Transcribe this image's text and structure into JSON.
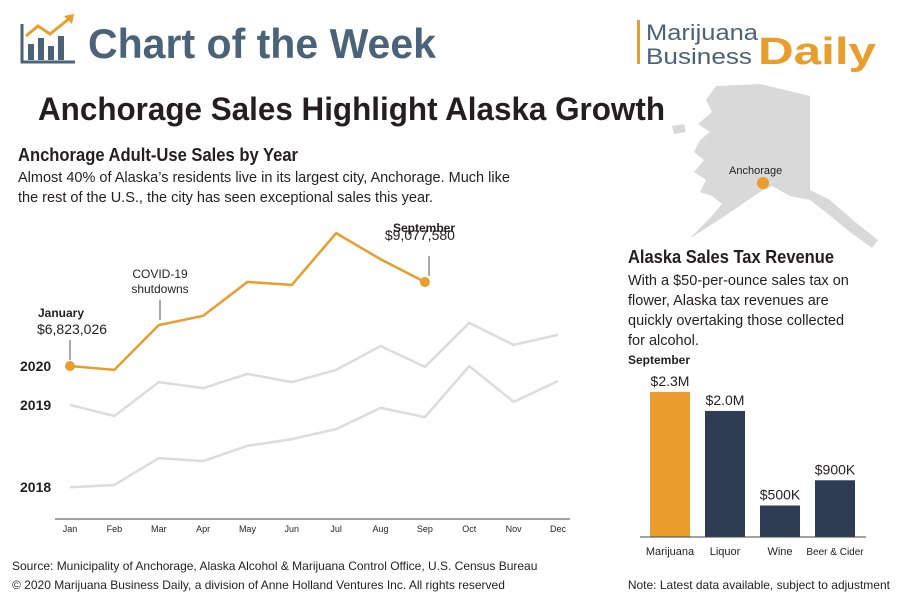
{
  "header": {
    "title": "Chart of the Week",
    "logo": [
      "Marijuana",
      "Business",
      "Daily"
    ]
  },
  "headline": "Anchorage Sales Highlight Alaska Growth",
  "map": {
    "label": "Anchorage"
  },
  "chart_data": [
    {
      "type": "line",
      "title": "Anchorage Adult-Use Sales by Year",
      "description": [
        "Almost 40% of Alaska’s residents live in its largest city, Anchorage. Much like",
        "the rest of the U.S., the city has seen exceptional sales this year."
      ],
      "categories": [
        "Jan",
        "Feb",
        "Mar",
        "Apr",
        "May",
        "Jun",
        "Jul",
        "Aug",
        "Sep",
        "Oct",
        "Nov",
        "Dec"
      ],
      "ylim": [
        2700000,
        10700000
      ],
      "annotations": [
        "January",
        "September",
        "COVID-19",
        "shutdowns"
      ],
      "series": [
        {
          "name": "2018",
          "color": "#dcdcdc",
          "values": [
            3570000,
            3630000,
            4350000,
            4270000,
            4680000,
            4860000,
            5130000,
            5700000,
            5450000,
            6820000,
            5860000,
            6420000
          ]
        },
        {
          "name": "2019",
          "color": "#dcdcdc",
          "values": [
            5780000,
            5480000,
            6390000,
            6230000,
            6610000,
            6390000,
            6720000,
            7360000,
            6800000,
            7980000,
            7390000,
            7660000
          ]
        },
        {
          "name": "2020",
          "color": "#e89d2c",
          "values": [
            6823026,
            6720000,
            7920000,
            8170000,
            9080000,
            9000000,
            10390000,
            9690000,
            9077580,
            null,
            null,
            null
          ],
          "value_labels": [
            "$6,823,026",
            null,
            null,
            null,
            null,
            null,
            null,
            null,
            "$9,077,580",
            null,
            null,
            null
          ]
        }
      ]
    },
    {
      "type": "bar",
      "title": "Alaska Sales Tax Revenue",
      "description": [
        "With a $50-per-ounce sales tax on",
        "flower, Alaska tax revenues are",
        "quickly overtaking those collected",
        "for alcohol."
      ],
      "annotation": "September",
      "categories": [
        "Marijuana",
        "Liquor",
        "Wine",
        "Beer & Cider"
      ],
      "values": [
        2300000,
        2000000,
        500000,
        900000
      ],
      "value_labels": [
        "$2.3M",
        "$2.0M",
        "$500K",
        "$900K"
      ],
      "colors": [
        "#e89d2c",
        "#2e3d54",
        "#2e3d54",
        "#2e3d54"
      ],
      "ylim": [
        0,
        2500000
      ]
    }
  ],
  "footer": {
    "source": "Source: Municipality of Anchorage, Alaska Alcohol & Marijuana Control Office, U.S. Census Bureau",
    "copyright": "© 2020 Marijuana Business Daily, a division of Anne Holland Ventures Inc. All rights reserved",
    "note": "Note: Latest data available, subject to adjustment"
  }
}
